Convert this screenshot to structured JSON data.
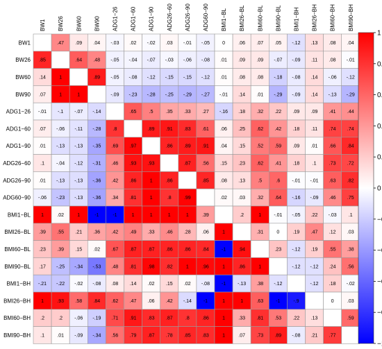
{
  "chart_data": {
    "type": "heatmap",
    "title": "",
    "variables": [
      "BW1",
      "BW26",
      "BW60",
      "BW90",
      "ADG1-26",
      "ADG1-60",
      "ADG1-90",
      "ADG26-60",
      "ADG26-90",
      "ADG60-90",
      "BMI1-BL",
      "BMI26-BL",
      "BMI60-BL",
      "BMI90-BL",
      "BMI1-BH",
      "BMI26-BH",
      "BMI60-BH",
      "BMI90-BH"
    ],
    "row_labels": [
      "BW1",
      "BW26",
      "BW60",
      "BW90",
      "ADG1−26",
      "ADG1−60",
      "ADG1−90",
      "ADG26−60",
      "ADG26−90",
      "ADG60−90",
      "BMI1−BL",
      "BMI26−BL",
      "BMI60−BL",
      "BMI90−BL",
      "BMI1−BH",
      "BMI26−BH",
      "BMI60−BH",
      "BMI90−BH"
    ],
    "col_labels": [
      "BW1",
      "BW26",
      "BW60",
      "BW90",
      "ADG1−26",
      "ADG1−60",
      "ADG1−90",
      "ADG26−60",
      "ADG26−90",
      "ADG60−90",
      "BMI1−BL",
      "BMI26−BL",
      "BMI60−BL",
      "BMI90−BL",
      "BMI1−BH",
      "BMI26−BH",
      "BMI60−BH",
      "BMI90−BH"
    ],
    "matrix": [
      [
        null,
        0.47,
        0.09,
        0.04,
        -0.03,
        0.02,
        -0.02,
        0.03,
        -0.01,
        -0.05,
        0,
        0.06,
        0.07,
        0.05,
        -0.12,
        0.13,
        0.08,
        0.04
      ],
      [
        0.85,
        null,
        0.64,
        0.48,
        -0.05,
        -0.04,
        -0.07,
        -0.03,
        -0.06,
        -0.08,
        0.01,
        0.09,
        0.09,
        -0.07,
        -0.09,
        0.11,
        0.08,
        -0.01
      ],
      [
        0.14,
        1,
        null,
        0.89,
        -0.05,
        -0.08,
        -0.12,
        -0.15,
        -0.15,
        -0.12,
        0.01,
        0.08,
        0.08,
        -0.18,
        -0.08,
        0.14,
        -0.06,
        -0.12
      ],
      [
        0.07,
        1,
        1,
        null,
        -0.09,
        -0.23,
        -0.28,
        -0.25,
        -0.29,
        -0.27,
        -0.01,
        0.14,
        0.01,
        -0.29,
        -0.09,
        0.14,
        -0.13,
        -0.29
      ],
      [
        -0.01,
        -0.1,
        -0.07,
        -0.14,
        null,
        0.65,
        0.5,
        0.35,
        0.33,
        0.27,
        -0.16,
        0.18,
        0.32,
        0.22,
        0.09,
        0.09,
        0.41,
        0.44
      ],
      [
        0.07,
        -0.06,
        -0.11,
        -0.28,
        0.8,
        null,
        0.89,
        0.91,
        0.83,
        0.61,
        0.06,
        0.25,
        0.62,
        0.42,
        0.18,
        0.11,
        0.74,
        0.74
      ],
      [
        0.01,
        -0.13,
        -0.13,
        -0.35,
        0.69,
        0.97,
        null,
        0.86,
        0.89,
        0.91,
        0.04,
        0.15,
        0.52,
        0.59,
        0.09,
        0.01,
        0.66,
        0.84
      ],
      [
        0.1,
        -0.04,
        -0.12,
        -0.31,
        0.46,
        0.93,
        0.93,
        null,
        0.87,
        0.56,
        0.15,
        0.23,
        0.62,
        0.41,
        0.18,
        0.1,
        0.73,
        0.72
      ],
      [
        0.01,
        -0.13,
        -0.13,
        -0.36,
        0.42,
        0.86,
        1,
        0.86,
        null,
        0.85,
        0.08,
        0.13,
        0.5,
        0.6,
        -0.01,
        -0.01,
        0.63,
        0.82
      ],
      [
        -0.06,
        -0.23,
        -0.13,
        -0.36,
        0.34,
        0.81,
        1,
        0.8,
        0.99,
        null,
        0.02,
        0.03,
        0.32,
        0.64,
        -0.16,
        -0.09,
        0.46,
        0.75
      ],
      [
        1,
        0.02,
        1,
        -1,
        -1,
        1,
        1,
        1,
        1,
        0.39,
        null,
        0.2,
        1,
        -0.01,
        -0.05,
        0.22,
        -0.03,
        0.1
      ],
      [
        0.39,
        0.55,
        0.21,
        0.36,
        0.42,
        0.49,
        0.33,
        0.46,
        0.28,
        0.06,
        1,
        null,
        0.31,
        0,
        0.19,
        0.47,
        0.12,
        0.03
      ],
      [
        0.23,
        0.39,
        0.15,
        0.02,
        0.67,
        0.87,
        0.87,
        0.86,
        0.86,
        0.84,
        -1,
        0.94,
        null,
        0.23,
        -0.12,
        0.19,
        0.55,
        0.38
      ],
      [
        0.17,
        -0.25,
        -0.34,
        -0.53,
        0.48,
        0.81,
        0.98,
        0.82,
        1,
        0.96,
        1,
        0.86,
        1,
        null,
        -0.12,
        -0.12,
        0.24,
        0.56
      ],
      [
        -0.21,
        -0.22,
        -0.02,
        -0.08,
        0.08,
        0.14,
        0.02,
        0.15,
        0.02,
        -0.08,
        -1,
        -0.13,
        0.38,
        -0.12,
        null,
        -0.12,
        0.18,
        -0.02
      ],
      [
        1,
        0.93,
        0.58,
        0.84,
        0.62,
        0.47,
        0.06,
        0.42,
        -0.14,
        -1,
        1,
        1,
        0.63,
        -1,
        -0.9,
        null,
        0,
        0.03
      ],
      [
        0.2,
        0.2,
        -0.06,
        -0.19,
        0.71,
        0.91,
        0.83,
        0.87,
        0.8,
        0.86,
        1,
        0.33,
        0.81,
        0.53,
        0.22,
        0.13,
        null,
        0.59
      ],
      [
        0.1,
        0.01,
        -0.09,
        -0.34,
        0.56,
        0.79,
        0.87,
        0.78,
        0.85,
        0.83,
        1,
        0.07,
        0.73,
        0.89,
        -0.08,
        0.21,
        0.77,
        null
      ]
    ],
    "scale_min": -1,
    "scale_max": 1,
    "colorbar_ticks": [
      1,
      0.8,
      0.6,
      0.4,
      0.2,
      0,
      -0.2,
      -0.4,
      -0.6,
      -0.8,
      -1
    ],
    "colorbar_tick_labels": [
      "1",
      "0.8",
      "0.6",
      "0.4",
      "0.2",
      "0",
      "−0.2",
      "−0.4",
      "−0.6",
      "−0.8",
      "−1"
    ],
    "colors": {
      "negative": "#0000ff",
      "zero": "#ffffff",
      "positive": "#ff0000",
      "grid": "#9a9a9a"
    },
    "legend": "right"
  }
}
